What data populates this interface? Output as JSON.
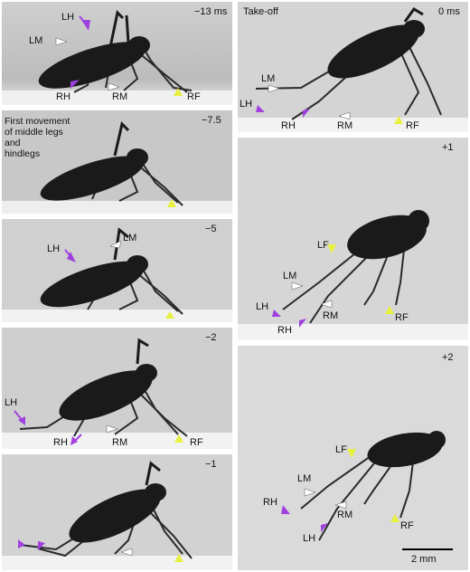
{
  "panels": [
    {
      "time": "−13 ms",
      "labels": [
        "LH",
        "LM",
        "RH",
        "RM",
        "RF"
      ]
    },
    {
      "time": "−7.5",
      "note_lines": [
        "First movement",
        "of middle legs",
        "and",
        "hindlegs"
      ]
    },
    {
      "time": "−5",
      "labels": [
        "LH",
        "LM"
      ]
    },
    {
      "time": "−2",
      "labels": [
        "LH",
        "RH",
        "RM",
        "RF"
      ]
    },
    {
      "time": "−1"
    },
    {
      "time": "0 ms",
      "title": "Take-off",
      "labels": [
        "LM",
        "LH",
        "RH",
        "RM",
        "RF"
      ]
    },
    {
      "time": "+1",
      "labels": [
        "LF",
        "LM",
        "LH",
        "RM",
        "RH",
        "RF"
      ]
    },
    {
      "time": "+2",
      "labels": [
        "LF",
        "LM",
        "RH",
        "RM",
        "LH",
        "RF"
      ]
    }
  ],
  "scale_bar": {
    "label": "2 mm"
  },
  "colors": {
    "hind_arrow": "#a040e0",
    "middle_arrow": "#ffffff",
    "front_arrow": "#e8f040",
    "insect": "#1a1a1a",
    "floor": "#f2f2f2"
  }
}
